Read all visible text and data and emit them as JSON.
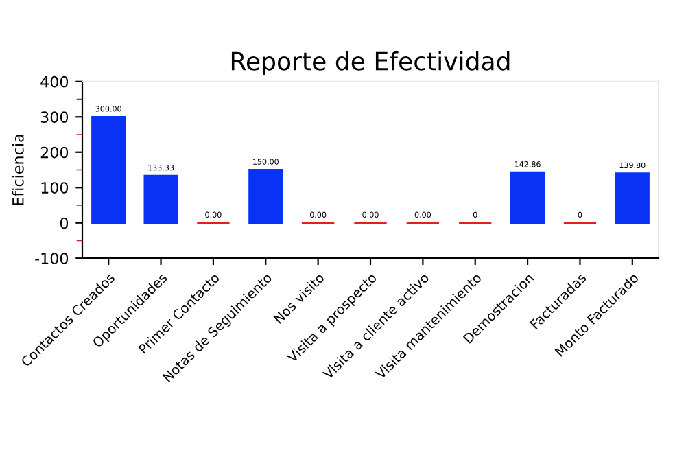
{
  "chart_data": {
    "type": "bar",
    "title": "Reporte de Efectividad",
    "ylabel": "Eficiencia",
    "categories": [
      "Contactos Creados",
      "Oportunidades",
      "Primer Contacto",
      "Notas de Seguimiento",
      "Nos visito",
      "Visita a prospecto",
      "Visita a cliente activo",
      "Visita mantenimiento",
      "Demostracion",
      "Facturadas",
      "Monto Facturado"
    ],
    "values": [
      300,
      133.33,
      0,
      150,
      0,
      0,
      0,
      0,
      142.86,
      0,
      139.8
    ],
    "value_labels": [
      "300.00",
      "133.33",
      "0.00",
      "150.00",
      "0.00",
      "0.00",
      "0.00",
      "0",
      "142.86",
      "0",
      "139.80"
    ],
    "colors": [
      "#0a32f5",
      "#0a32f5",
      "#e02020",
      "#0a32f5",
      "#e02020",
      "#e02020",
      "#e02020",
      "#e02020",
      "#0a32f5",
      "#e02020",
      "#0a32f5"
    ],
    "ylim": [
      -100,
      400
    ],
    "yticks": [
      -100,
      0,
      100,
      200,
      300,
      400
    ],
    "grid": false,
    "legend": false
  }
}
